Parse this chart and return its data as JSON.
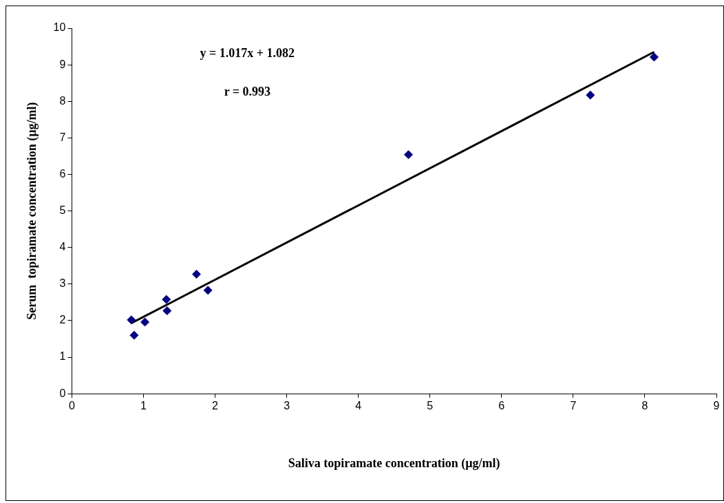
{
  "chart_data": {
    "type": "scatter",
    "xlabel": "Saliva topiramate concentration (µg/ml)",
    "ylabel": "Serum  topiramate concentration (µg/ml)",
    "annotations": [
      "y = 1.017x + 1.082",
      "r = 0.993"
    ],
    "series": [
      {
        "color": "#000080",
        "marker": "diamond",
        "x": [
          0.83,
          0.87,
          1.02,
          1.32,
          1.33,
          1.74,
          1.9,
          4.7,
          7.24,
          8.13
        ],
        "values": [
          2.02,
          1.6,
          1.96,
          2.58,
          2.27,
          3.27,
          2.83,
          6.54,
          8.17,
          9.21
        ]
      },
      {
        "type": "line",
        "color": "#000000",
        "marker": "none",
        "x": [
          0.83,
          8.13
        ],
        "values": [
          1.93,
          9.35
        ]
      }
    ],
    "xlim": [
      0,
      9
    ],
    "xticks": [
      0,
      1,
      2,
      3,
      4,
      5,
      6,
      7,
      8,
      9
    ],
    "ylim": [
      0,
      10
    ],
    "yticks": [
      0,
      1,
      2,
      3,
      4,
      5,
      6,
      7,
      8,
      9,
      10
    ],
    "grid": false,
    "legend": false
  }
}
